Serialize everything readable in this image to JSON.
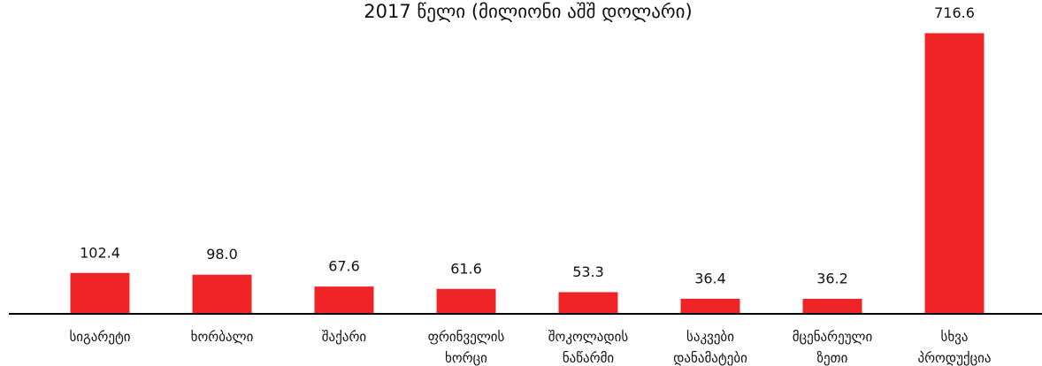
{
  "chart_data": {
    "type": "bar",
    "title": "2017 წელი (მილიონი აშშ დოლარი)",
    "categories": [
      "სიგარეტი",
      "ხორბალი",
      "შაქარი",
      "ფრინველის ხორცი",
      "შოკოლადის ნაწარმი",
      "საკვები დანამატები",
      "მცენარეული ზეთი",
      "სხვა პროდუქცია"
    ],
    "values": [
      102.4,
      98,
      67.6,
      61.6,
      53.3,
      36.4,
      36.2,
      716.6
    ],
    "value_labels": [
      "102.4",
      "98.0",
      "67.6",
      "61.6",
      "53.3",
      "36.4",
      "36.2",
      "716.6"
    ],
    "color": "#ee2427",
    "ylim": [
      0,
      720
    ]
  }
}
